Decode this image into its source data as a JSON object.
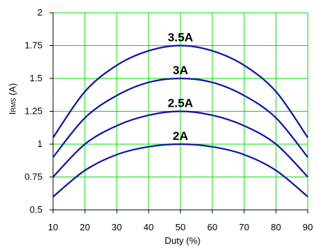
{
  "chart_data": {
    "type": "line",
    "xlabel": "Duty (%)",
    "ylabel_main": "I",
    "ylabel_sub": "RMS",
    "ylabel_unit": " (A)",
    "x_ticks": [
      "10",
      "20",
      "30",
      "40",
      "50",
      "60",
      "70",
      "80",
      "90"
    ],
    "y_ticks": [
      "0.5",
      "0.75",
      "1",
      "1.25",
      "1.5",
      "1.75",
      "2"
    ],
    "xlim": [
      10,
      90
    ],
    "ylim": [
      0.5,
      2
    ],
    "grid": true,
    "colors": {
      "grid": "#00e000",
      "line": "#0a14a8",
      "axis": "#000000"
    },
    "x": [
      10,
      20,
      30,
      40,
      50,
      60,
      70,
      80,
      90
    ],
    "series": [
      {
        "name": "3.5A",
        "values": [
          1.05,
          1.4,
          1.6,
          1.71,
          1.75,
          1.71,
          1.6,
          1.4,
          1.05
        ]
      },
      {
        "name": "3A",
        "values": [
          0.9,
          1.2,
          1.37,
          1.47,
          1.5,
          1.47,
          1.37,
          1.2,
          0.9
        ]
      },
      {
        "name": "2.5A",
        "values": [
          0.75,
          1.0,
          1.14,
          1.22,
          1.25,
          1.22,
          1.14,
          1.0,
          0.75
        ]
      },
      {
        "name": "2A",
        "values": [
          0.6,
          0.8,
          0.92,
          0.98,
          1.0,
          0.98,
          0.92,
          0.8,
          0.6
        ]
      }
    ]
  }
}
